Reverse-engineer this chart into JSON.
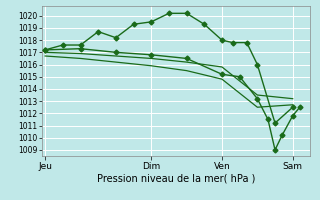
{
  "xlabel": "Pression niveau de la mer( hPa )",
  "bg_color": "#c0e8e8",
  "grid_color": "#ffffff",
  "line_color": "#1a6b1a",
  "ylim": [
    1008.5,
    1020.8
  ],
  "yticks": [
    1009,
    1010,
    1011,
    1012,
    1013,
    1014,
    1015,
    1016,
    1017,
    1018,
    1019,
    1020
  ],
  "xtick_labels": [
    "Jeu",
    "Dim",
    "Ven",
    "Sam"
  ],
  "xtick_positions": [
    0,
    3,
    5,
    7
  ],
  "xlim": [
    -0.1,
    7.5
  ],
  "series": [
    {
      "x": [
        0,
        0.5,
        1,
        1.5,
        2,
        2.5,
        3,
        3.5,
        4,
        4.5,
        5,
        5.3,
        5.7,
        6,
        6.5,
        7
      ],
      "y": [
        1017.2,
        1017.6,
        1017.6,
        1018.7,
        1018.2,
        1019.3,
        1019.5,
        1020.2,
        1020.2,
        1019.3,
        1018.0,
        1017.8,
        1017.8,
        1016.0,
        1011.2,
        1012.5
      ],
      "marker": "D",
      "markersize": 2.5,
      "linewidth": 1.0
    },
    {
      "x": [
        0,
        1,
        2,
        3,
        4,
        5,
        6,
        7
      ],
      "y": [
        1017.0,
        1016.9,
        1016.7,
        1016.5,
        1016.2,
        1015.8,
        1013.5,
        1013.2
      ],
      "marker": null,
      "linewidth": 0.9
    },
    {
      "x": [
        0,
        1,
        2,
        3,
        4,
        5,
        6,
        7
      ],
      "y": [
        1016.7,
        1016.5,
        1016.2,
        1015.9,
        1015.5,
        1014.8,
        1012.5,
        1012.7
      ],
      "marker": null,
      "linewidth": 0.9
    },
    {
      "x": [
        0,
        1,
        2,
        3,
        4,
        5,
        5.5,
        6,
        6.3,
        6.5,
        6.7,
        7,
        7.2
      ],
      "y": [
        1017.2,
        1017.3,
        1017.0,
        1016.8,
        1016.5,
        1015.2,
        1015.0,
        1013.2,
        1011.5,
        1009.0,
        1010.2,
        1011.8,
        1012.5
      ],
      "marker": "D",
      "markersize": 2.5,
      "linewidth": 1.0
    }
  ]
}
